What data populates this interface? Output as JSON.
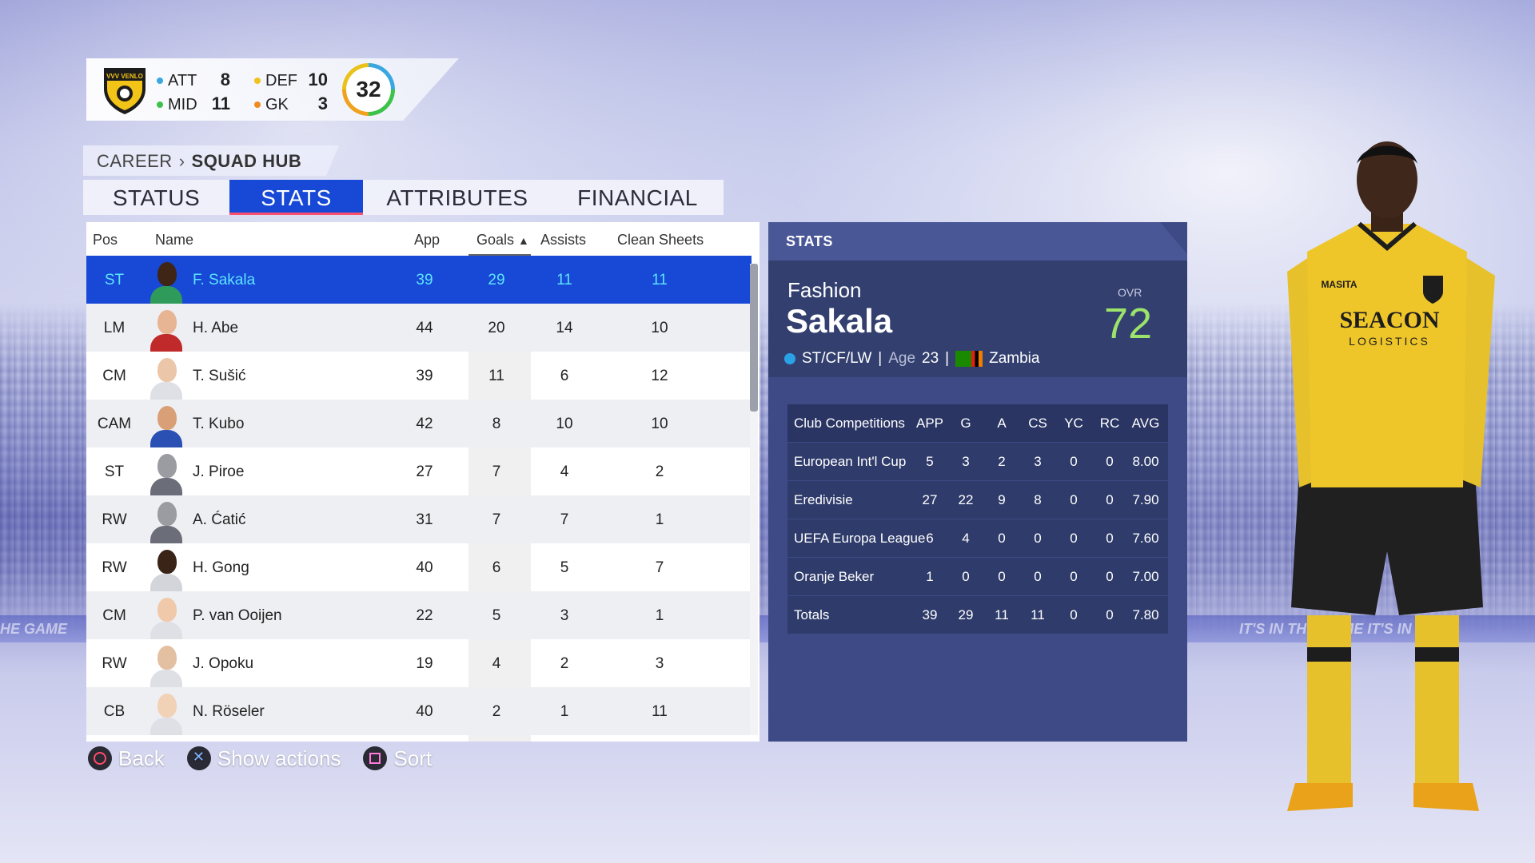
{
  "team": {
    "att_label": "ATT",
    "att": "8",
    "def_label": "DEF",
    "def": "10",
    "mid_label": "MID",
    "mid": "11",
    "gk_label": "GK",
    "gk": "3",
    "overall": "32",
    "crest_text": "VVV VENLO"
  },
  "breadcrumb": {
    "root": "CAREER",
    "current": "SQUAD HUB"
  },
  "tabs": [
    {
      "label": "STATUS",
      "active": false
    },
    {
      "label": "STATS",
      "active": true
    },
    {
      "label": "ATTRIBUTES",
      "active": false
    },
    {
      "label": "FINANCIAL",
      "active": false
    }
  ],
  "table": {
    "headers": {
      "pos": "Pos",
      "name": "Name",
      "app": "App",
      "goals": "Goals",
      "assists": "Assists",
      "clean_sheets": "Clean Sheets"
    },
    "sort_indicator": "▲",
    "rows": [
      {
        "pos": "ST",
        "name": "F. Sakala",
        "app": "39",
        "goals": "29",
        "assists": "11",
        "cs": "11"
      },
      {
        "pos": "LM",
        "name": "H. Abe",
        "app": "44",
        "goals": "20",
        "assists": "14",
        "cs": "10"
      },
      {
        "pos": "CM",
        "name": "T. Sušić",
        "app": "39",
        "goals": "11",
        "assists": "6",
        "cs": "12"
      },
      {
        "pos": "CAM",
        "name": "T. Kubo",
        "app": "42",
        "goals": "8",
        "assists": "10",
        "cs": "10"
      },
      {
        "pos": "ST",
        "name": "J. Piroe",
        "app": "27",
        "goals": "7",
        "assists": "4",
        "cs": "2"
      },
      {
        "pos": "RW",
        "name": "A. Ćatić",
        "app": "31",
        "goals": "7",
        "assists": "7",
        "cs": "1"
      },
      {
        "pos": "RW",
        "name": "H. Gong",
        "app": "40",
        "goals": "6",
        "assists": "5",
        "cs": "7"
      },
      {
        "pos": "CM",
        "name": "P. van Ooijen",
        "app": "22",
        "goals": "5",
        "assists": "3",
        "cs": "1"
      },
      {
        "pos": "RW",
        "name": "J. Opoku",
        "app": "19",
        "goals": "4",
        "assists": "2",
        "cs": "3"
      },
      {
        "pos": "CB",
        "name": "N. Röseler",
        "app": "40",
        "goals": "2",
        "assists": "1",
        "cs": "11"
      }
    ]
  },
  "actions": {
    "back": "Back",
    "show_actions": "Show actions",
    "sort": "Sort"
  },
  "stats_panel": {
    "title": "STATS",
    "first_name": "Fashion",
    "last_name": "Sakala",
    "ovr_label": "OVR",
    "ovr": "72",
    "positions": "ST/CF/LW",
    "age_label": "Age",
    "age": "23",
    "nation": "Zambia",
    "sep": "|",
    "comp_headers": {
      "name": "Club Competitions",
      "app": "APP",
      "g": "G",
      "a": "A",
      "cs": "CS",
      "yc": "YC",
      "rc": "RC",
      "avg": "AVG"
    },
    "competitions": [
      {
        "name": "European Int'l Cup",
        "app": "5",
        "g": "3",
        "a": "2",
        "cs": "3",
        "yc": "0",
        "rc": "0",
        "avg": "8.00"
      },
      {
        "name": "Eredivisie",
        "app": "27",
        "g": "22",
        "a": "9",
        "cs": "8",
        "yc": "0",
        "rc": "0",
        "avg": "7.90"
      },
      {
        "name": "UEFA Europa League",
        "app": "6",
        "g": "4",
        "a": "0",
        "cs": "0",
        "yc": "0",
        "rc": "0",
        "avg": "7.60"
      },
      {
        "name": "Oranje Beker",
        "app": "1",
        "g": "0",
        "a": "0",
        "cs": "0",
        "yc": "0",
        "rc": "0",
        "avg": "7.00"
      },
      {
        "name": "Totals",
        "app": "39",
        "g": "29",
        "a": "11",
        "cs": "11",
        "yc": "0",
        "rc": "0",
        "avg": "7.80"
      }
    ]
  },
  "kit": {
    "sponsor": "SEACON",
    "sponsor_sub": "LOGISTICS",
    "brand": "MASITA"
  },
  "background": {
    "ad_left": "HE GAME",
    "ad_right": "IT'S IN THE GAME   IT'S IN TH"
  },
  "colors": {
    "accent": "#1749d6",
    "selected_text": "#5ee3ff",
    "ovr_green": "#9be36a",
    "panel": "#3d4a86"
  }
}
